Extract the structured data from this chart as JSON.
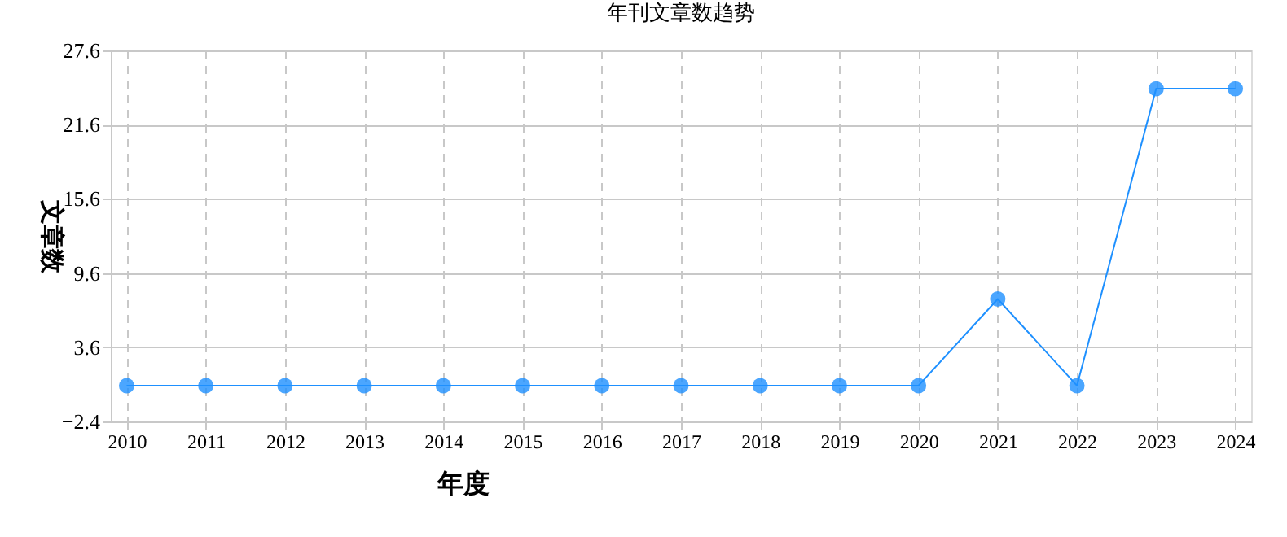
{
  "chart_data": {
    "type": "line",
    "title": "年刊文章数趋势",
    "xlabel": "年度",
    "ylabel": "文章数",
    "categories": [
      "2010",
      "2011",
      "2012",
      "2013",
      "2014",
      "2015",
      "2016",
      "2017",
      "2018",
      "2019",
      "2020",
      "2021",
      "2022",
      "2023",
      "2024"
    ],
    "series": [
      {
        "color": "#1e90ff",
        "values": [
          0.5,
          0.5,
          0.5,
          0.5,
          0.5,
          0.5,
          0.5,
          0.5,
          0.5,
          0.5,
          0.5,
          7.5,
          0.5,
          24.5,
          24.5
        ]
      }
    ],
    "marker": "circle",
    "ylim": [
      -2.4,
      27.6
    ],
    "yticks": [
      -2.4,
      3.6,
      9.6,
      15.6,
      21.6,
      27.6
    ],
    "grid": true,
    "legend": false
  }
}
